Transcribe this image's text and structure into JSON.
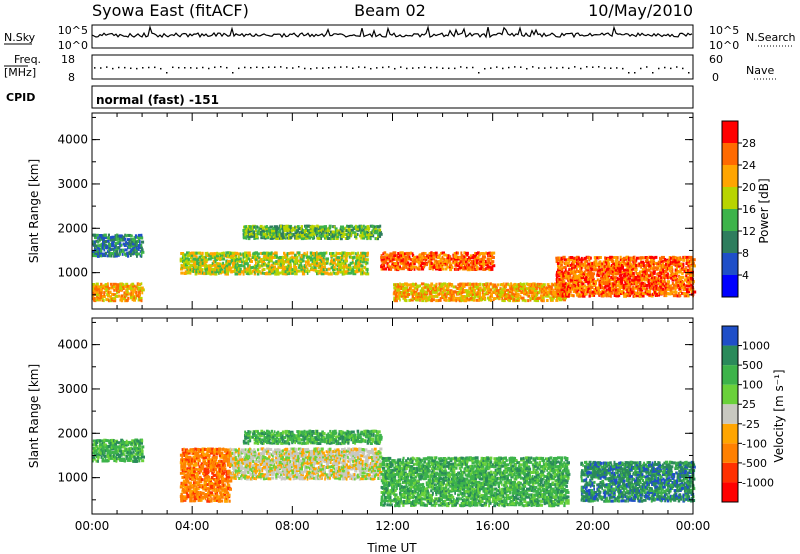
{
  "header": {
    "title": "Syowa East (fitACF)",
    "beam": "Beam 02",
    "date": "10/May/2010"
  },
  "strip": {
    "nsky_label": "N.Sky",
    "nsky_ticks": [
      "10^5",
      "10^0"
    ],
    "nsearch_label": "N.Search",
    "nsearch_ticks": [
      "10^5",
      "10^0"
    ],
    "freq_label": "Freq.",
    "freq_unit": "[MHz]",
    "freq_ticks": [
      "18",
      "8"
    ],
    "nave_label": "Nave",
    "nave_ticks": [
      "60",
      "0"
    ],
    "cpid_label": "CPID",
    "cpid_value": "normal (fast) -151"
  },
  "chart_data": [
    {
      "type": "heatmap",
      "title": "",
      "parameter": "Power",
      "xlabel": "",
      "ylabel": "Slant Range [km]",
      "ylim": [
        180,
        4600
      ],
      "yticks": [
        "1000",
        "2000",
        "3000",
        "4000"
      ],
      "x_tick_labels": [],
      "colorbar": {
        "label": "Power [dB]",
        "levels": [
          "4",
          "8",
          "12",
          "16",
          "20",
          "24",
          "28"
        ],
        "colors": [
          "#0000ff",
          "#1f4fc8",
          "#2e7d5e",
          "#3db34a",
          "#b8d400",
          "#ffa500",
          "#ff6a00",
          "#ff0000"
        ]
      },
      "echo_regions": [
        {
          "t0": 0.0,
          "t1": 2.0,
          "r0": 1400,
          "r1": 1900,
          "level": 8
        },
        {
          "t0": 0.0,
          "t1": 2.0,
          "r0": 400,
          "r1": 800,
          "level": 20
        },
        {
          "t0": 3.5,
          "t1": 11.0,
          "r0": 1000,
          "r1": 1500,
          "level": 16
        },
        {
          "t0": 6.0,
          "t1": 11.5,
          "r0": 1800,
          "r1": 2100,
          "level": 12
        },
        {
          "t0": 11.5,
          "t1": 16.0,
          "r0": 1100,
          "r1": 1500,
          "level": 24
        },
        {
          "t0": 12.0,
          "t1": 19.0,
          "r0": 400,
          "r1": 800,
          "level": 20
        },
        {
          "t0": 18.5,
          "t1": 24.0,
          "r0": 500,
          "r1": 1400,
          "level": 24
        }
      ]
    },
    {
      "type": "heatmap",
      "title": "",
      "parameter": "Velocity",
      "xlabel": "Time UT",
      "ylabel": "Slant Range [km]",
      "ylim": [
        180,
        4600
      ],
      "yticks": [
        "1000",
        "2000",
        "3000",
        "4000"
      ],
      "x_tick_labels": [
        "00:00",
        "04:00",
        "08:00",
        "12:00",
        "16:00",
        "20:00",
        "00:00"
      ],
      "colorbar": {
        "label": "Velocity [m s⁻¹]",
        "levels": [
          "1000",
          "500",
          "100",
          "25",
          "-25",
          "-100",
          "-500",
          "-1000"
        ],
        "colors": [
          "#1f4fc8",
          "#2a8a5a",
          "#3db34a",
          "#6ad13a",
          "#c8c8c0",
          "#ffa500",
          "#ff8000",
          "#ff3000",
          "#ff0000"
        ]
      },
      "echo_regions": [
        {
          "t0": 0.0,
          "t1": 2.0,
          "r0": 1400,
          "r1": 1900,
          "level": 100
        },
        {
          "t0": 3.5,
          "t1": 5.5,
          "r0": 500,
          "r1": 1700,
          "level": -100
        },
        {
          "t0": 5.5,
          "t1": 11.5,
          "r0": 1000,
          "r1": 1700,
          "level": 0
        },
        {
          "t0": 6.0,
          "t1": 11.5,
          "r0": 1800,
          "r1": 2100,
          "level": 100
        },
        {
          "t0": 11.5,
          "t1": 19.0,
          "r0": 400,
          "r1": 1500,
          "level": 100
        },
        {
          "t0": 19.5,
          "t1": 24.0,
          "r0": 500,
          "r1": 1400,
          "level": 500
        }
      ]
    }
  ]
}
